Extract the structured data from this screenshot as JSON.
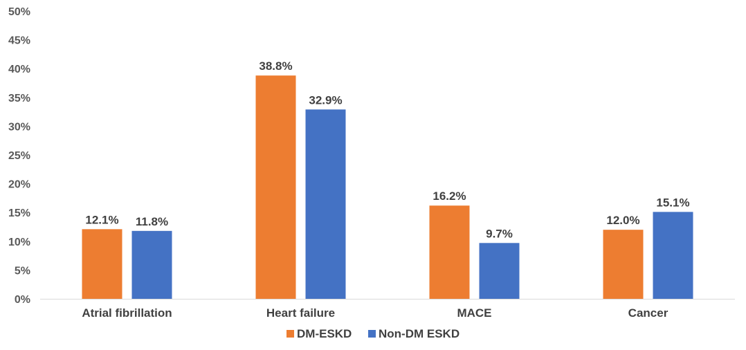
{
  "chart_data": {
    "type": "bar",
    "title": "",
    "xlabel": "",
    "ylabel": "",
    "categories": [
      "Atrial fibrillation",
      "Heart failure",
      "MACE",
      "Cancer"
    ],
    "series": [
      {
        "name": "DM-ESKD",
        "values": [
          12.1,
          38.8,
          16.2,
          12.0
        ],
        "labels": [
          "12.1%",
          "38.8%",
          "16.2%",
          "12.0%"
        ],
        "color": "#ED7D31"
      },
      {
        "name": "Non-DM ESKD",
        "values": [
          11.8,
          32.9,
          9.7,
          15.1
        ],
        "labels": [
          "11.8%",
          "32.9%",
          "9.7%",
          "15.1%"
        ],
        "color": "#4472C4"
      }
    ],
    "ylim": [
      0,
      50
    ],
    "yticks": [
      0,
      5,
      10,
      15,
      20,
      25,
      30,
      35,
      40,
      45,
      50
    ],
    "ytick_labels": [
      "0%",
      "5%",
      "10%",
      "15%",
      "20%",
      "25%",
      "30%",
      "35%",
      "40%",
      "45%",
      "50%"
    ],
    "grid": false,
    "legend_position": "bottom"
  }
}
